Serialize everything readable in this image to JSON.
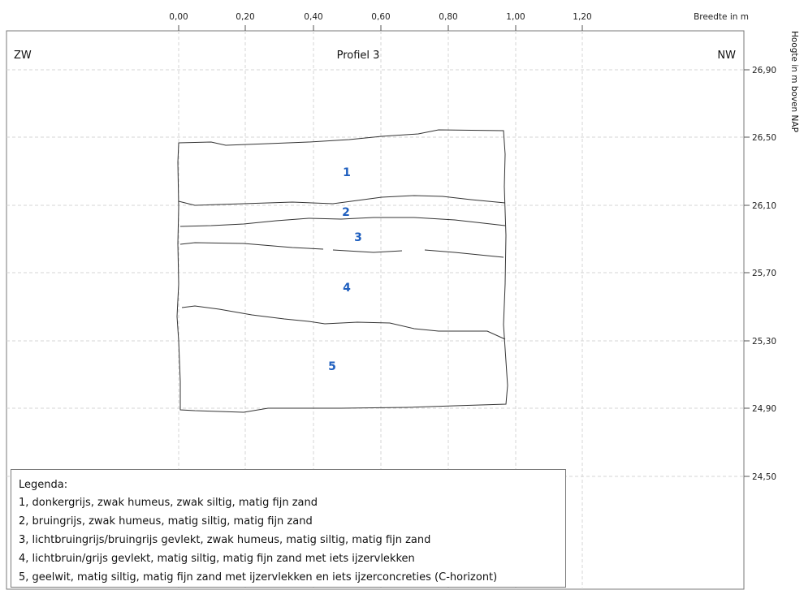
{
  "diagram": {
    "title": "Profiel 3",
    "left_label": "ZW",
    "right_label": "NW",
    "x_axis_label": "Breedte in m",
    "y_axis_label": "Hoogte in m boven NAP",
    "x_ticks": [
      "0,00",
      "0,20",
      "0,40",
      "0,60",
      "0,80",
      "1,00",
      "1,20"
    ],
    "y_ticks": [
      "26,90",
      "26,50",
      "26,10",
      "25,70",
      "25,30",
      "24,90",
      "24,50"
    ],
    "layer_labels": [
      "1",
      "2",
      "3",
      "4",
      "5"
    ],
    "colors": {
      "layer_label": "#1f5fbf",
      "grid": "#d0d0d0",
      "outline": "#333333"
    }
  },
  "legend": {
    "title": "Legenda:",
    "items": [
      "1, donkergrijs, zwak humeus, zwak siltig, matig fijn zand",
      "2, bruingrijs, zwak humeus, matig siltig, matig fijn zand",
      "3, lichtbruingrijs/bruingrijs gevlekt, zwak humeus, matig siltig, matig fijn zand",
      "4, lichtbruin/grijs gevlekt, matig siltig, matig fijn zand met iets ijzervlekken",
      "5, geelwit, matig siltig, matig fijn zand met ijzervlekken en iets ijzerconcreties (C-horizont)"
    ]
  }
}
